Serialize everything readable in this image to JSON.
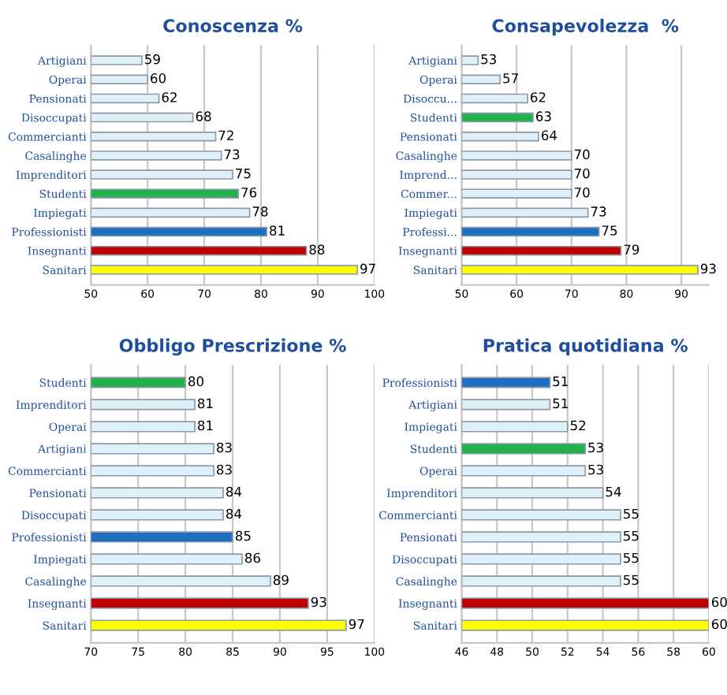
{
  "chart_data": [
    {
      "type": "bar",
      "orientation": "horizontal",
      "title": "Conoscenza %",
      "categories": [
        "Artigiani",
        "Operai",
        "Pensionati",
        "Disoccupati",
        "Commercianti",
        "Casalinghe",
        "Imprenditori",
        "Studenti",
        "Impiegati",
        "Professionisti",
        "Insegnanti",
        "Sanitari"
      ],
      "values": [
        59,
        60,
        62,
        68,
        72,
        73,
        75,
        76,
        78,
        81,
        88,
        97
      ],
      "colors": [
        "#dff0f8",
        "#dff0f8",
        "#dff0f8",
        "#dff0f8",
        "#dff0f8",
        "#dff0f8",
        "#dff0f8",
        "#22b14c",
        "#dff0f8",
        "#1f6fc0",
        "#c00000",
        "#ffff00"
      ],
      "xlim": [
        50,
        100
      ],
      "xticks": [
        50,
        60,
        70,
        80,
        90,
        100
      ],
      "grid": "x",
      "data_labels": true
    },
    {
      "type": "bar",
      "orientation": "horizontal",
      "title": "Consapevolezza  %",
      "categories": [
        "Artigiani",
        "Operai",
        "Disoccu...",
        "Studenti",
        "Pensionati",
        "Casalinghe",
        "Imprend...",
        "Commer...",
        "Impiegati",
        "Professi...",
        "Insegnanti",
        "Sanitari"
      ],
      "values": [
        53,
        57,
        62,
        63,
        64,
        70,
        70,
        70,
        73,
        75,
        79,
        93
      ],
      "colors": [
        "#dff0f8",
        "#dff0f8",
        "#dff0f8",
        "#22b14c",
        "#dff0f8",
        "#dff0f8",
        "#dff0f8",
        "#dff0f8",
        "#dff0f8",
        "#1f6fc0",
        "#c00000",
        "#ffff00"
      ],
      "xlim": [
        50,
        95
      ],
      "xticks": [
        50,
        60,
        70,
        80,
        90
      ],
      "grid": "x",
      "data_labels": true
    },
    {
      "type": "bar",
      "orientation": "horizontal",
      "title": "Obbligo Prescrizione %",
      "categories": [
        "Studenti",
        "Imprenditori",
        "Operai",
        "Artigiani",
        "Commercianti",
        "Pensionati",
        "Disoccupati",
        "Professionisti",
        "Impiegati",
        "Casalinghe",
        "Insegnanti",
        "Sanitari"
      ],
      "values": [
        80,
        81,
        81,
        83,
        83,
        84,
        84,
        85,
        86,
        89,
        93,
        97
      ],
      "colors": [
        "#22b14c",
        "#dff0f8",
        "#dff0f8",
        "#dff0f8",
        "#dff0f8",
        "#dff0f8",
        "#dff0f8",
        "#1f6fc0",
        "#dff0f8",
        "#dff0f8",
        "#c00000",
        "#ffff00"
      ],
      "xlim": [
        70,
        100
      ],
      "xticks": [
        70,
        75,
        80,
        85,
        90,
        95,
        100
      ],
      "grid": "x",
      "data_labels": true
    },
    {
      "type": "bar",
      "orientation": "horizontal",
      "title": "Pratica quotidiana %",
      "categories": [
        "Professionisti",
        "Artigiani",
        "Impiegati",
        "Studenti",
        "Operai",
        "Imprenditori",
        "Commercianti",
        "Pensionati",
        "Disoccupati",
        "Casalinghe",
        "Insegnanti",
        "Sanitari"
      ],
      "values": [
        51,
        51,
        52,
        53,
        53,
        54,
        55,
        55,
        55,
        55,
        60,
        60
      ],
      "colors": [
        "#1f6fc0",
        "#dff0f8",
        "#dff0f8",
        "#22b14c",
        "#dff0f8",
        "#dff0f8",
        "#dff0f8",
        "#dff0f8",
        "#dff0f8",
        "#dff0f8",
        "#c00000",
        "#ffff00"
      ],
      "xlim": [
        46,
        60
      ],
      "xticks": [
        46,
        48,
        50,
        52,
        54,
        56,
        58,
        60
      ],
      "grid": "x",
      "data_labels": true
    }
  ]
}
